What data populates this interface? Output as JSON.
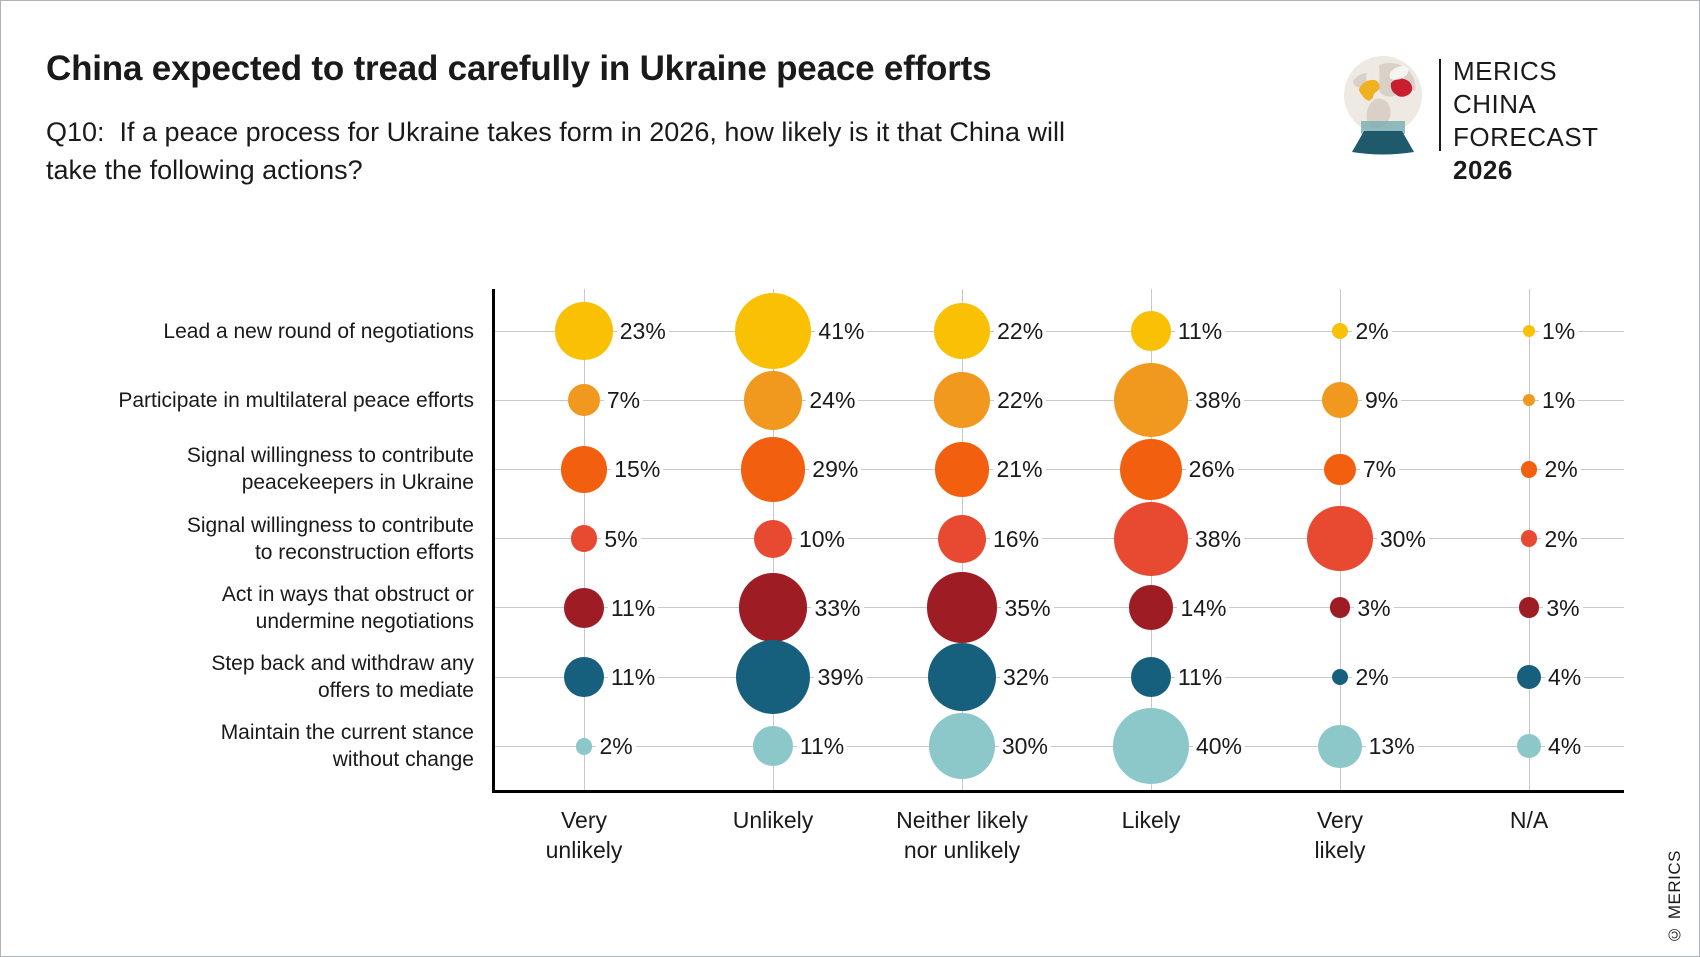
{
  "logo": {
    "line1": "MERICS",
    "line2": "CHINA FORECAST",
    "line3": "2026"
  },
  "footer": {
    "copyright": "© MERICS"
  },
  "chart_data": {
    "type": "bubble",
    "title": "China expected to tread carefully in Ukraine peace efforts",
    "subtitle": "Q10:  If a peace process for Ukraine takes form in 2026, how likely is it that China will\ntake the following actions?",
    "value_suffix": "%",
    "grid": true,
    "legend_position": "none",
    "x_categories": [
      "Very\nunlikely",
      "Unlikely",
      "Neither likely\nnor unlikely",
      "Likely",
      "Very\nlikely",
      "N/A"
    ],
    "rows": [
      {
        "label": "Lead a new round of negotiations",
        "color": "#F9C004",
        "values": [
          23,
          41,
          22,
          11,
          2,
          1
        ]
      },
      {
        "label": "Participate in multilateral peace efforts",
        "color": "#F0991E",
        "values": [
          7,
          24,
          22,
          38,
          9,
          1
        ]
      },
      {
        "label": "Signal willingness to contribute\npeacekeepers in Ukraine",
        "color": "#F2600F",
        "values": [
          15,
          29,
          21,
          26,
          7,
          2
        ]
      },
      {
        "label": "Signal willingness to contribute\nto reconstruction efforts",
        "color": "#E84A31",
        "values": [
          5,
          10,
          16,
          38,
          30,
          2
        ]
      },
      {
        "label": "Act in ways that obstruct or\nundermine negotiations",
        "color": "#9E1C23",
        "values": [
          11,
          33,
          35,
          14,
          3,
          3
        ]
      },
      {
        "label": "Step back and withdraw any\noffers to mediate",
        "color": "#17607D",
        "values": [
          11,
          39,
          32,
          11,
          2,
          4
        ]
      },
      {
        "label": "Maintain the current stance\nwithout change",
        "color": "#8CC8CA",
        "values": [
          2,
          11,
          30,
          40,
          13,
          4
        ]
      }
    ]
  }
}
